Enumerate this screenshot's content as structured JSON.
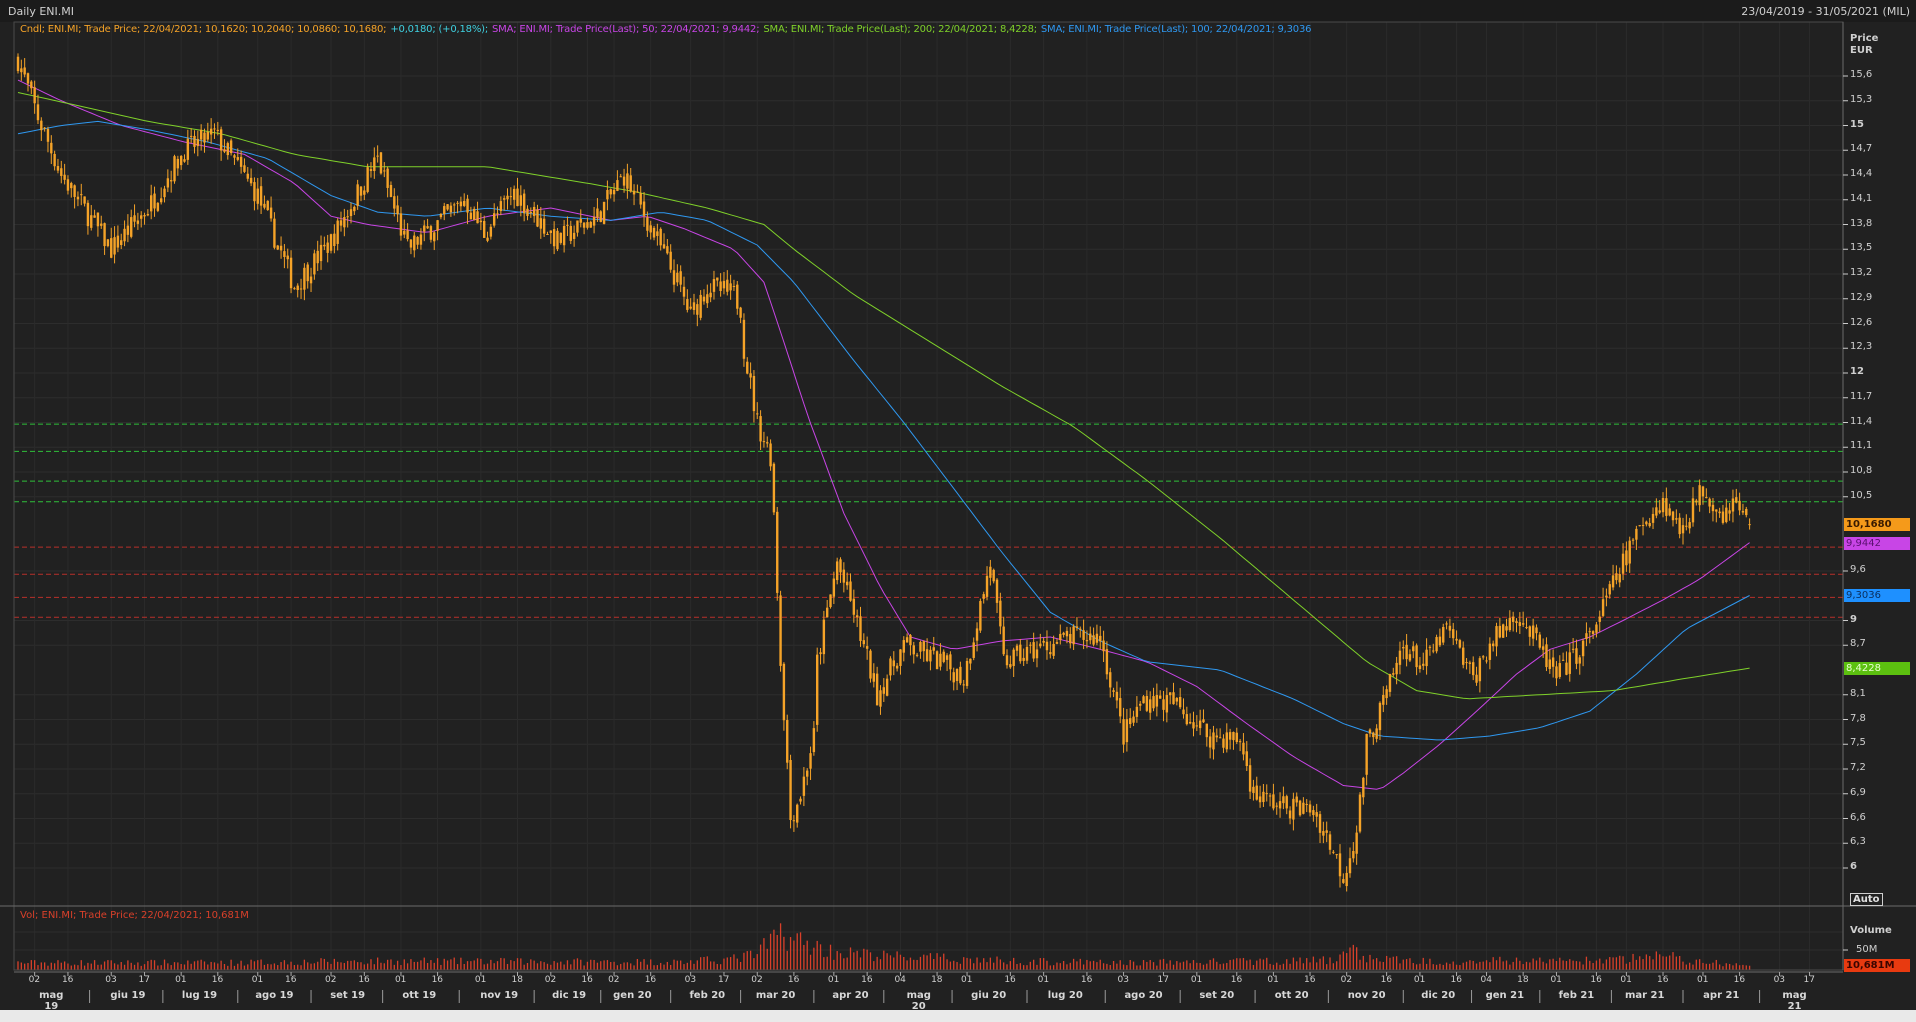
{
  "header": {
    "title": "Daily ENI.MI",
    "date_range": "23/04/2019 - 31/05/2021 (MIL)"
  },
  "legend": {
    "candle": "Cndl; ENI.MI; Trade Price;  22/04/2021; 10,1620; 10,2040; 10,0860; 10,1680;",
    "change": "+0,0180; (+0,18%);",
    "sma50": "SMA; ENI.MI; Trade Price(Last);  50;  22/04/2021; 9,9442;",
    "sma200": "SMA; ENI.MI; Trade Price(Last);  200;  22/04/2021; 8,4228;",
    "sma100": "SMA; ENI.MI; Trade Price(Last);  100;  22/04/2021; 9,3036",
    "volume": "Vol; ENI.MI; Trade Price;  22/04/2021; 10,681M"
  },
  "axis": {
    "price_title": "Price",
    "currency": "EUR",
    "volume_title": "Volume",
    "volume_tick": "50M",
    "auto_button": "Auto"
  },
  "tags": {
    "last": "10,1680",
    "sma50": "9,9442",
    "sma100": "9,3036",
    "sma200": "8,4228",
    "volume": "10,681M"
  },
  "colors": {
    "candle": "#f5a328",
    "change": "#3fd0e0",
    "sma50": "#c845e6",
    "sma100": "#2f98f0",
    "sma200": "#7fd12a",
    "volume": "#d8402a",
    "support": "#2fbf3a",
    "resistance": "#b8302a"
  },
  "chart_data": {
    "type": "candlestick",
    "title": "Daily ENI.MI",
    "x_unit": "trading days since 23/04/2019",
    "ylabel": "Price EUR",
    "ylim": [
      5.7,
      16.2
    ],
    "yticks": [
      {
        "v": 15.6,
        "l": "15,6"
      },
      {
        "v": 15.3,
        "l": "15,3"
      },
      {
        "v": 15,
        "l": "15",
        "b": 1
      },
      {
        "v": 14.7,
        "l": "14,7"
      },
      {
        "v": 14.4,
        "l": "14,4"
      },
      {
        "v": 14.1,
        "l": "14,1"
      },
      {
        "v": 13.8,
        "l": "13,8"
      },
      {
        "v": 13.5,
        "l": "13,5"
      },
      {
        "v": 13.2,
        "l": "13,2"
      },
      {
        "v": 12.9,
        "l": "12,9"
      },
      {
        "v": 12.6,
        "l": "12,6"
      },
      {
        "v": 12.3,
        "l": "12,3"
      },
      {
        "v": 12,
        "l": "12",
        "b": 1
      },
      {
        "v": 11.7,
        "l": "11,7"
      },
      {
        "v": 11.4,
        "l": "11,4"
      },
      {
        "v": 11.1,
        "l": "11,1"
      },
      {
        "v": 10.8,
        "l": "10,8"
      },
      {
        "v": 10.5,
        "l": "10,5"
      },
      {
        "v": 9.6,
        "l": "9,6"
      },
      {
        "v": 9,
        "l": "9",
        "b": 1
      },
      {
        "v": 8.7,
        "l": "8,7"
      },
      {
        "v": 8.1,
        "l": "8,1"
      },
      {
        "v": 7.8,
        "l": "7,8"
      },
      {
        "v": 7.5,
        "l": "7,5"
      },
      {
        "v": 7.2,
        "l": "7,2"
      },
      {
        "v": 6.9,
        "l": "6,9"
      },
      {
        "v": 6.6,
        "l": "6,6"
      },
      {
        "v": 6.3,
        "l": "6,3"
      },
      {
        "v": 6,
        "l": "6",
        "b": 1
      }
    ],
    "close_keypoints": [
      [
        0,
        15.8
      ],
      [
        6,
        15.1
      ],
      [
        13,
        14.4
      ],
      [
        28,
        13.5
      ],
      [
        39,
        14.0
      ],
      [
        50,
        14.7
      ],
      [
        59,
        14.9
      ],
      [
        72,
        14.15
      ],
      [
        83,
        13.05
      ],
      [
        94,
        13.6
      ],
      [
        105,
        14.4
      ],
      [
        108,
        14.6
      ],
      [
        117,
        13.5
      ],
      [
        134,
        14.1
      ],
      [
        140,
        13.7
      ],
      [
        149,
        14.2
      ],
      [
        162,
        13.6
      ],
      [
        174,
        13.9
      ],
      [
        182,
        14.4
      ],
      [
        189,
        13.85
      ],
      [
        198,
        13.1
      ],
      [
        202,
        12.7
      ],
      [
        207,
        13.05
      ],
      [
        215,
        12.95
      ],
      [
        217,
        12.8
      ],
      [
        218,
        12.3
      ],
      [
        222,
        11.4
      ],
      [
        226,
        11.0
      ],
      [
        227,
        10.3
      ],
      [
        229,
        8.5
      ],
      [
        230,
        7.9
      ],
      [
        232,
        6.6
      ],
      [
        235,
        6.9
      ],
      [
        239,
        7.6
      ],
      [
        240,
        8.5
      ],
      [
        246,
        9.7
      ],
      [
        251,
        9.1
      ],
      [
        258,
        8.1
      ],
      [
        266,
        8.7
      ],
      [
        277,
        8.5
      ],
      [
        284,
        8.3
      ],
      [
        292,
        9.7
      ],
      [
        296,
        8.5
      ],
      [
        306,
        8.65
      ],
      [
        317,
        8.8
      ],
      [
        325,
        8.8
      ],
      [
        332,
        7.6
      ],
      [
        338,
        8.05
      ],
      [
        347,
        8.0
      ],
      [
        358,
        7.6
      ],
      [
        367,
        7.55
      ],
      [
        371,
        6.9
      ],
      [
        380,
        6.75
      ],
      [
        389,
        6.7
      ],
      [
        394,
        6.3
      ],
      [
        398,
        5.9
      ],
      [
        402,
        6.45
      ],
      [
        405,
        7.5
      ],
      [
        411,
        8.1
      ],
      [
        416,
        8.7
      ],
      [
        422,
        8.45
      ],
      [
        429,
        8.9
      ],
      [
        437,
        8.3
      ],
      [
        442,
        8.7
      ],
      [
        450,
        9.1
      ],
      [
        455,
        8.8
      ],
      [
        462,
        8.3
      ],
      [
        472,
        8.8
      ],
      [
        477,
        9.25
      ],
      [
        482,
        9.7
      ],
      [
        488,
        10.2
      ],
      [
        494,
        10.45
      ],
      [
        499,
        10.1
      ],
      [
        506,
        10.6
      ],
      [
        512,
        10.3
      ],
      [
        515,
        10.45
      ],
      [
        520,
        10.168
      ]
    ],
    "last_ohlc": {
      "date": "22/04/2021",
      "open": 10.162,
      "high": 10.204,
      "low": 10.086,
      "close": 10.168
    },
    "series": [
      {
        "name": "SMA 50",
        "color_key": "sma50",
        "points": [
          [
            0,
            15.55
          ],
          [
            13,
            15.3
          ],
          [
            31,
            15.0
          ],
          [
            50,
            14.8
          ],
          [
            68,
            14.65
          ],
          [
            83,
            14.3
          ],
          [
            94,
            13.9
          ],
          [
            105,
            13.8
          ],
          [
            123,
            13.7
          ],
          [
            141,
            13.9
          ],
          [
            160,
            14.0
          ],
          [
            178,
            13.85
          ],
          [
            189,
            13.9
          ],
          [
            200,
            13.75
          ],
          [
            215,
            13.5
          ],
          [
            224,
            13.1
          ],
          [
            229,
            12.5
          ],
          [
            237,
            11.5
          ],
          [
            248,
            10.3
          ],
          [
            259,
            9.4
          ],
          [
            268,
            8.8
          ],
          [
            281,
            8.65
          ],
          [
            295,
            8.75
          ],
          [
            310,
            8.8
          ],
          [
            325,
            8.65
          ],
          [
            339,
            8.5
          ],
          [
            354,
            8.2
          ],
          [
            369,
            7.75
          ],
          [
            383,
            7.35
          ],
          [
            398,
            7.0
          ],
          [
            409,
            6.95
          ],
          [
            416,
            7.15
          ],
          [
            427,
            7.5
          ],
          [
            438,
            7.9
          ],
          [
            450,
            8.35
          ],
          [
            460,
            8.65
          ],
          [
            472,
            8.8
          ],
          [
            482,
            9.0
          ],
          [
            494,
            9.25
          ],
          [
            505,
            9.5
          ],
          [
            520,
            9.9442
          ]
        ]
      },
      {
        "name": "SMA 100",
        "color_key": "sma100",
        "points": [
          [
            0,
            14.9
          ],
          [
            13,
            15.0
          ],
          [
            24,
            15.05
          ],
          [
            39,
            14.95
          ],
          [
            57,
            14.8
          ],
          [
            75,
            14.6
          ],
          [
            94,
            14.15
          ],
          [
            108,
            13.95
          ],
          [
            123,
            13.9
          ],
          [
            141,
            14.0
          ],
          [
            160,
            13.9
          ],
          [
            178,
            13.85
          ],
          [
            193,
            13.95
          ],
          [
            207,
            13.85
          ],
          [
            222,
            13.55
          ],
          [
            233,
            13.1
          ],
          [
            251,
            12.15
          ],
          [
            266,
            11.4
          ],
          [
            281,
            10.6
          ],
          [
            295,
            9.85
          ],
          [
            310,
            9.1
          ],
          [
            325,
            8.75
          ],
          [
            339,
            8.5
          ],
          [
            361,
            8.4
          ],
          [
            383,
            8.05
          ],
          [
            398,
            7.75
          ],
          [
            409,
            7.6
          ],
          [
            427,
            7.55
          ],
          [
            442,
            7.6
          ],
          [
            457,
            7.7
          ],
          [
            472,
            7.9
          ],
          [
            486,
            8.35
          ],
          [
            501,
            8.9
          ],
          [
            520,
            9.3036
          ]
        ]
      },
      {
        "name": "SMA 200",
        "color_key": "sma200",
        "points": [
          [
            0,
            15.4
          ],
          [
            17,
            15.25
          ],
          [
            39,
            15.05
          ],
          [
            61,
            14.9
          ],
          [
            83,
            14.65
          ],
          [
            105,
            14.5
          ],
          [
            141,
            14.5
          ],
          [
            171,
            14.3
          ],
          [
            185,
            14.2
          ],
          [
            207,
            14.0
          ],
          [
            224,
            13.8
          ],
          [
            233,
            13.5
          ],
          [
            251,
            12.95
          ],
          [
            273,
            12.4
          ],
          [
            295,
            11.85
          ],
          [
            317,
            11.35
          ],
          [
            339,
            10.7
          ],
          [
            361,
            10.0
          ],
          [
            383,
            9.25
          ],
          [
            405,
            8.5
          ],
          [
            420,
            8.15
          ],
          [
            435,
            8.05
          ],
          [
            457,
            8.1
          ],
          [
            479,
            8.15
          ],
          [
            501,
            8.3
          ],
          [
            520,
            8.4228
          ]
        ]
      }
    ],
    "support_lines": [
      11.38,
      11.05,
      10.69,
      10.44
    ],
    "resistance_lines": [
      9.89,
      9.56,
      9.28,
      9.04
    ],
    "volume_keypoints_millions": [
      [
        0,
        18
      ],
      [
        60,
        18
      ],
      [
        105,
        22
      ],
      [
        200,
        20
      ],
      [
        215,
        28
      ],
      [
        222,
        40
      ],
      [
        229,
        95
      ],
      [
        235,
        70
      ],
      [
        245,
        45
      ],
      [
        260,
        35
      ],
      [
        280,
        28
      ],
      [
        300,
        22
      ],
      [
        330,
        18
      ],
      [
        395,
        24
      ],
      [
        399,
        55
      ],
      [
        405,
        30
      ],
      [
        420,
        22
      ],
      [
        480,
        24
      ],
      [
        494,
        40
      ],
      [
        500,
        24
      ],
      [
        520,
        10.681
      ]
    ],
    "date_ticks": [
      {
        "d": 5,
        "l": "02"
      },
      {
        "d": 15,
        "l": "16"
      },
      {
        "d": 28,
        "l": "03"
      },
      {
        "d": 38,
        "l": "17"
      },
      {
        "d": 49,
        "l": "01"
      },
      {
        "d": 60,
        "l": "16"
      },
      {
        "d": 72,
        "l": "01"
      },
      {
        "d": 82,
        "l": "16"
      },
      {
        "d": 94,
        "l": "02"
      },
      {
        "d": 104,
        "l": "16"
      },
      {
        "d": 115,
        "l": "01"
      },
      {
        "d": 126,
        "l": "16"
      },
      {
        "d": 139,
        "l": "01"
      },
      {
        "d": 150,
        "l": "18"
      },
      {
        "d": 160,
        "l": "02"
      },
      {
        "d": 171,
        "l": "16"
      },
      {
        "d": 179,
        "l": "02"
      },
      {
        "d": 190,
        "l": "16"
      },
      {
        "d": 202,
        "l": "03"
      },
      {
        "d": 212,
        "l": "17"
      },
      {
        "d": 222,
        "l": "02"
      },
      {
        "d": 233,
        "l": "16"
      },
      {
        "d": 245,
        "l": "01"
      },
      {
        "d": 255,
        "l": "16"
      },
      {
        "d": 265,
        "l": "04"
      },
      {
        "d": 276,
        "l": "18"
      },
      {
        "d": 285,
        "l": "01"
      },
      {
        "d": 298,
        "l": "16"
      },
      {
        "d": 308,
        "l": "01"
      },
      {
        "d": 321,
        "l": "16"
      },
      {
        "d": 332,
        "l": "03"
      },
      {
        "d": 344,
        "l": "17"
      },
      {
        "d": 354,
        "l": "01"
      },
      {
        "d": 366,
        "l": "16"
      },
      {
        "d": 377,
        "l": "01"
      },
      {
        "d": 388,
        "l": "16"
      },
      {
        "d": 399,
        "l": "02"
      },
      {
        "d": 411,
        "l": "16"
      },
      {
        "d": 421,
        "l": "01"
      },
      {
        "d": 432,
        "l": "16"
      },
      {
        "d": 441,
        "l": "04"
      },
      {
        "d": 452,
        "l": "18"
      },
      {
        "d": 462,
        "l": "01"
      },
      {
        "d": 474,
        "l": "16"
      },
      {
        "d": 483,
        "l": "01"
      },
      {
        "d": 494,
        "l": "16"
      },
      {
        "d": 506,
        "l": "01"
      },
      {
        "d": 517,
        "l": "16"
      },
      {
        "d": 529,
        "l": "03"
      },
      {
        "d": 538,
        "l": "17"
      }
    ],
    "months": [
      "mag 19",
      "giu 19",
      "lug 19",
      "ago 19",
      "set 19",
      "ott 19",
      "nov 19",
      "dic 19",
      "gen 20",
      "feb 20",
      "mar 20",
      "apr 20",
      "mag 20",
      "giu 20",
      "lug 20",
      "ago 20",
      "set 20",
      "ott 20",
      "nov 20",
      "dic 20",
      "gen 21",
      "feb 21",
      "mar 21",
      "apr 21",
      "mag 21"
    ]
  }
}
